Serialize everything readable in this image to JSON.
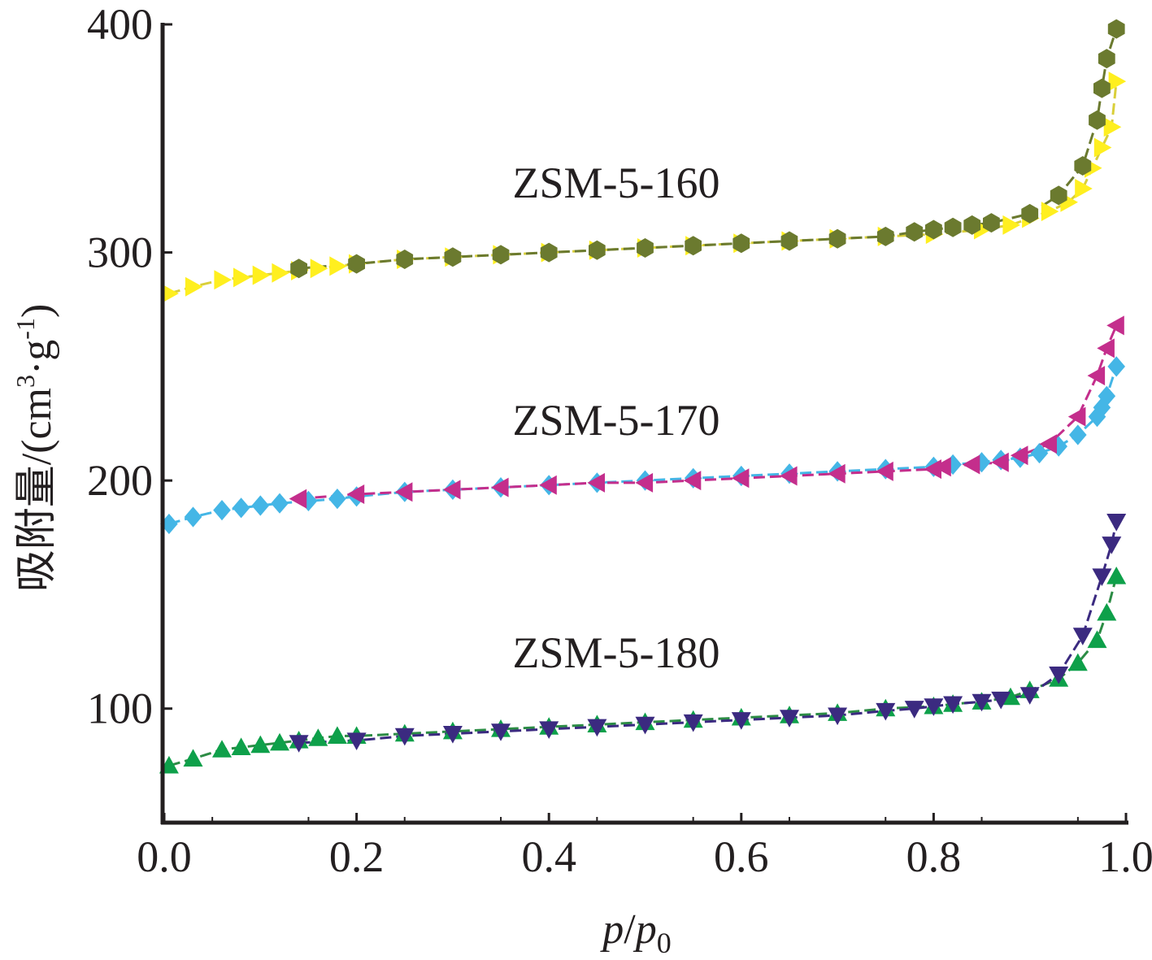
{
  "chart_data": {
    "type": "scatter",
    "xlabel": "p/p0",
    "xlabel_parts": {
      "p": "p",
      "slash": "/",
      "p0_base": "p",
      "p0_sub": "0"
    },
    "ylabel": "吸附量/(cm3·g-1)",
    "ylabel_parts": {
      "main": "吸附量/(cm",
      "sup1": "3",
      "mid": "·g",
      "sup2": "-1",
      "close": ")"
    },
    "xlim": [
      0.0,
      1.0
    ],
    "ylim": [
      50,
      400
    ],
    "x_ticks": [
      0.0,
      0.2,
      0.4,
      0.6,
      0.8,
      1.0
    ],
    "x_tick_labels": [
      "0.0",
      "0.2",
      "0.4",
      "0.6",
      "0.8",
      "1.0"
    ],
    "y_ticks": [
      100,
      200,
      300,
      400
    ],
    "y_tick_labels": [
      "100",
      "200",
      "300",
      "400"
    ],
    "grid": false,
    "annotations": [
      {
        "text": "ZSM-5-160",
        "x": 0.47,
        "y": 324
      },
      {
        "text": "ZSM-5-170",
        "x": 0.47,
        "y": 220
      },
      {
        "text": "ZSM-5-180",
        "x": 0.47,
        "y": 118
      }
    ],
    "series": [
      {
        "sample": "ZSM-5-160",
        "branch": "adsorption",
        "color": "#ffef1f",
        "line_color": "#d9cf3a",
        "marker": "triangle-right",
        "x": [
          0.005,
          0.03,
          0.06,
          0.08,
          0.1,
          0.12,
          0.14,
          0.16,
          0.18,
          0.2,
          0.25,
          0.3,
          0.35,
          0.4,
          0.45,
          0.5,
          0.55,
          0.6,
          0.65,
          0.7,
          0.75,
          0.8,
          0.85,
          0.88,
          0.9,
          0.92,
          0.94,
          0.955,
          0.965,
          0.975,
          0.985,
          0.99
        ],
        "y": [
          282,
          285,
          288,
          289,
          290,
          291,
          292,
          293,
          294,
          295,
          297,
          298,
          299,
          300,
          301,
          302,
          303,
          304,
          305,
          306,
          307,
          308,
          310,
          312,
          315,
          318,
          322,
          328,
          337,
          346,
          355,
          375
        ]
      },
      {
        "sample": "ZSM-5-160",
        "branch": "desorption",
        "color": "#6b7a2f",
        "line_color": "#6b7a2f",
        "marker": "hexagon",
        "x": [
          0.14,
          0.2,
          0.25,
          0.3,
          0.35,
          0.4,
          0.45,
          0.5,
          0.55,
          0.6,
          0.65,
          0.7,
          0.75,
          0.78,
          0.8,
          0.82,
          0.84,
          0.86,
          0.9,
          0.93,
          0.955,
          0.97,
          0.975,
          0.98,
          0.99
        ],
        "y": [
          293,
          295,
          297,
          298,
          299,
          300,
          301,
          302,
          303,
          304,
          305,
          306,
          307,
          309,
          310,
          311,
          312,
          313,
          317,
          325,
          338,
          358,
          372,
          385,
          398
        ]
      },
      {
        "sample": "ZSM-5-170",
        "branch": "adsorption",
        "color": "#44b6e6",
        "line_color": "#44b6e6",
        "marker": "diamond",
        "x": [
          0.005,
          0.03,
          0.06,
          0.08,
          0.1,
          0.12,
          0.15,
          0.18,
          0.2,
          0.25,
          0.3,
          0.35,
          0.4,
          0.45,
          0.5,
          0.55,
          0.6,
          0.65,
          0.7,
          0.75,
          0.8,
          0.82,
          0.85,
          0.87,
          0.89,
          0.91,
          0.93,
          0.95,
          0.97,
          0.975,
          0.98,
          0.99
        ],
        "y": [
          181,
          184,
          187,
          188,
          189,
          190,
          191,
          192,
          193,
          195,
          196,
          197,
          198,
          199,
          200,
          201,
          202,
          203,
          204,
          205,
          206,
          207,
          208,
          209,
          210,
          212,
          215,
          220,
          228,
          232,
          237,
          250
        ]
      },
      {
        "sample": "ZSM-5-170",
        "branch": "desorption",
        "color": "#c42e8c",
        "line_color": "#c42e8c",
        "marker": "triangle-left",
        "x": [
          0.14,
          0.2,
          0.25,
          0.3,
          0.35,
          0.4,
          0.45,
          0.5,
          0.55,
          0.6,
          0.65,
          0.7,
          0.75,
          0.8,
          0.81,
          0.84,
          0.87,
          0.89,
          0.92,
          0.95,
          0.97,
          0.98,
          0.99
        ],
        "y": [
          192,
          194,
          195,
          196,
          197,
          198,
          199,
          199,
          200,
          201,
          202,
          203,
          204,
          205,
          206,
          207,
          208,
          211,
          216,
          228,
          246,
          258,
          268
        ]
      },
      {
        "sample": "ZSM-5-180",
        "branch": "adsorption",
        "color": "#0ea04a",
        "line_color": "#2c8c45",
        "marker": "triangle-up",
        "x": [
          0.005,
          0.03,
          0.06,
          0.08,
          0.1,
          0.12,
          0.14,
          0.16,
          0.18,
          0.2,
          0.25,
          0.3,
          0.35,
          0.4,
          0.45,
          0.5,
          0.55,
          0.6,
          0.65,
          0.7,
          0.75,
          0.8,
          0.82,
          0.85,
          0.88,
          0.9,
          0.93,
          0.95,
          0.97,
          0.98,
          0.99
        ],
        "y": [
          75,
          78,
          82,
          83,
          84,
          85,
          86,
          87,
          88,
          88,
          89,
          90,
          91,
          92,
          93,
          94,
          95,
          96,
          97,
          98,
          100,
          101,
          102,
          103,
          105,
          108,
          113,
          120,
          130,
          142,
          158
        ]
      },
      {
        "sample": "ZSM-5-180",
        "branch": "desorption",
        "color": "#3b2a80",
        "line_color": "#3b2a80",
        "marker": "triangle-down",
        "x": [
          0.14,
          0.2,
          0.25,
          0.3,
          0.35,
          0.4,
          0.45,
          0.5,
          0.55,
          0.6,
          0.65,
          0.7,
          0.75,
          0.78,
          0.8,
          0.82,
          0.85,
          0.87,
          0.9,
          0.93,
          0.955,
          0.975,
          0.985,
          0.99
        ],
        "y": [
          85,
          86,
          88,
          89,
          90,
          91,
          92,
          93,
          94,
          95,
          96,
          97,
          99,
          100,
          101,
          102,
          103,
          104,
          106,
          115,
          132,
          158,
          172,
          182
        ]
      }
    ]
  }
}
